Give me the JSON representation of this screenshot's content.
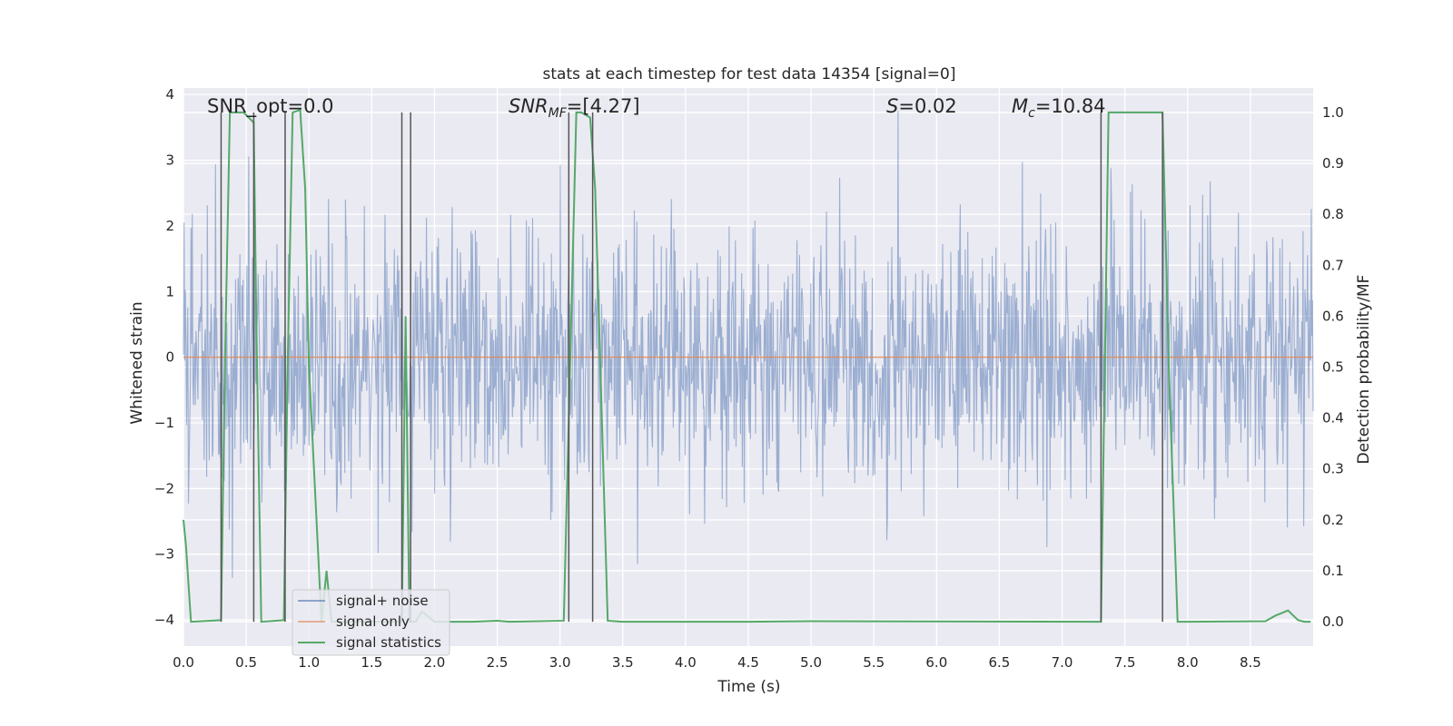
{
  "chart_data": {
    "type": "line",
    "title": "stats at each timestep for test data 14354 [signal=0]",
    "xlabel": "Time (s)",
    "ylabel": "Whitened strain",
    "ylabel_right": "Detection probability/MF",
    "xlim": [
      0.0,
      9.0
    ],
    "ylim": [
      -4.4,
      4.1
    ],
    "ylim_right": [
      -0.048,
      1.048
    ],
    "x_ticks": [
      "0.0",
      "0.5",
      "1.0",
      "1.5",
      "2.0",
      "2.5",
      "3.0",
      "3.5",
      "4.0",
      "4.5",
      "5.0",
      "5.5",
      "6.0",
      "6.5",
      "7.0",
      "7.5",
      "8.0",
      "8.5"
    ],
    "x_tick_values": [
      0,
      0.5,
      1,
      1.5,
      2,
      2.5,
      3,
      3.5,
      4,
      4.5,
      5,
      5.5,
      6,
      6.5,
      7,
      7.5,
      8,
      8.5
    ],
    "y_ticks": [
      "−4",
      "−3",
      "−2",
      "−1",
      "0",
      "1",
      "2",
      "3",
      "4"
    ],
    "y_tick_values": [
      -4,
      -3,
      -2,
      -1,
      0,
      1,
      2,
      3,
      4
    ],
    "y2_ticks": [
      "0.0",
      "0.1",
      "0.2",
      "0.3",
      "0.4",
      "0.5",
      "0.6",
      "0.7",
      "0.8",
      "0.9",
      "1.0"
    ],
    "y2_tick_values": [
      0,
      0.1,
      0.2,
      0.3,
      0.4,
      0.5,
      0.6,
      0.7,
      0.8,
      0.9,
      1.0
    ],
    "grid": true,
    "legend_position": "lower-left",
    "legend": [
      "signal+ noise",
      "signal only",
      "signal statistics"
    ],
    "colors": {
      "noise": "#4c72b0",
      "signal": "#dd8452",
      "stats": "#55a868",
      "vlines": "#555555",
      "plot_bg": "#eaeaf2",
      "grid": "#ffffff"
    },
    "annotations": {
      "snr_opt": "SNR_opt=0.0",
      "snr_mf_base": "SNR",
      "snr_mf_sub": "MF",
      "snr_mf_value": "=[4.27]",
      "s_base": "S",
      "s_value": "=0.02",
      "mc_base": "M",
      "mc_sub": "c",
      "mc_value": "=10.84"
    },
    "noise_series": {
      "name": "signal+ noise",
      "n_samples": 1800,
      "std": 1.0,
      "range": [
        -4.0,
        3.75
      ]
    },
    "signal_series": {
      "name": "signal only",
      "x": [
        0.0,
        9.0
      ],
      "y": [
        0.0,
        0.0
      ]
    },
    "stats_series": {
      "name": "signal statistics",
      "x": [
        0.0,
        0.02,
        0.06,
        0.3,
        0.33,
        0.37,
        0.48,
        0.52,
        0.56,
        0.58,
        0.62,
        0.8,
        0.83,
        0.87,
        0.93,
        0.97,
        1.0,
        1.1,
        1.14,
        1.18,
        1.74,
        1.77,
        1.8,
        1.85,
        1.9,
        2.0,
        2.3,
        2.5,
        2.6,
        3.03,
        3.08,
        3.13,
        3.17,
        3.24,
        3.28,
        3.38,
        3.5,
        4.5,
        5.0,
        7.31,
        7.34,
        7.37,
        7.75,
        7.8,
        7.82,
        7.85,
        7.92,
        8.0,
        8.62,
        8.7,
        8.75,
        8.8,
        8.85,
        8.88,
        8.93,
        8.98
      ],
      "y": [
        0.2,
        0.15,
        0.0,
        0.003,
        0.5,
        1.0,
        1.0,
        0.99,
        0.98,
        0.6,
        0.0,
        0.003,
        0.5,
        1.0,
        1.005,
        0.85,
        0.5,
        0.0,
        0.1,
        0.0,
        0.0,
        0.6,
        0.0,
        0.0,
        0.02,
        0.0,
        0.0,
        0.002,
        0.0,
        0.002,
        0.5,
        1.0,
        1.0,
        0.99,
        0.85,
        0.002,
        0.0,
        0.0,
        0.001,
        0.0,
        0.5,
        1.0,
        1.0,
        1.0,
        0.8,
        0.5,
        0.0,
        0.0,
        0.001,
        0.012,
        0.017,
        0.022,
        0.01,
        0.003,
        0.0,
        0.0
      ]
    },
    "vertical_lines": [
      0.3,
      0.56,
      0.81,
      1.74,
      1.81,
      3.07,
      3.26,
      7.31,
      7.8
    ]
  }
}
